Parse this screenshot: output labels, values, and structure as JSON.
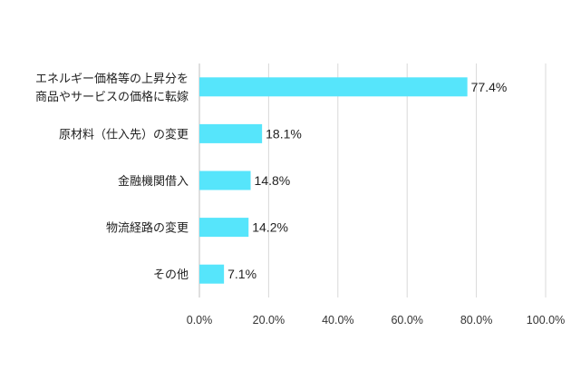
{
  "chart_data": {
    "type": "bar",
    "orientation": "horizontal",
    "categories": [
      [
        "エネルギー価格等の上昇分を",
        "商品やサービスの価格に転嫁"
      ],
      [
        "原材料（仕入先）の変更"
      ],
      [
        "金融機関借入"
      ],
      [
        "物流経路の変更"
      ],
      [
        "その他"
      ]
    ],
    "values": [
      77.4,
      18.1,
      14.8,
      14.2,
      7.1
    ],
    "value_labels": [
      "77.4%",
      "18.1%",
      "14.8%",
      "14.2%",
      "7.1%"
    ],
    "xlim": [
      0,
      100
    ],
    "x_ticks": [
      0,
      20,
      40,
      60,
      80,
      100
    ],
    "x_tick_labels": [
      "0.0%",
      "20.0%",
      "40.0%",
      "60.0%",
      "80.0%",
      "100.0%"
    ],
    "title": "",
    "xlabel": "",
    "ylabel": "",
    "grid": "vertical",
    "legend": "none",
    "colors": {
      "bar": "#56e5fb",
      "grid": "#d9d9d9",
      "text": "#222222"
    }
  }
}
